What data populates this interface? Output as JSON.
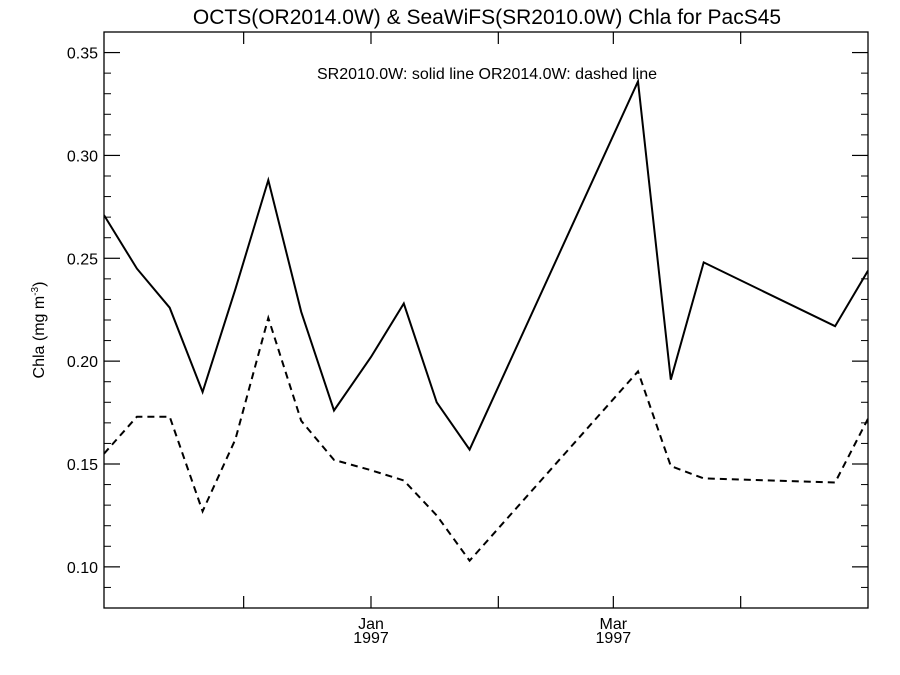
{
  "chart_data": {
    "type": "line",
    "title": "OCTS(OR2014.0W) & SeaWiFS(SR2010.0W)  Chla for PacS45",
    "annotation": "SR2010.0W: solid line   OR2014.0W: dashed line",
    "ylabel": {
      "main": "Chla (mg m",
      "sup": "-3",
      "close": ")"
    },
    "ylim": [
      0.08,
      0.36
    ],
    "yticks": [
      {
        "value": 0.1,
        "label": "0.10"
      },
      {
        "value": 0.15,
        "label": "0.15"
      },
      {
        "value": 0.2,
        "label": "0.20"
      },
      {
        "value": 0.25,
        "label": "0.25"
      },
      {
        "value": 0.3,
        "label": "0.30"
      },
      {
        "value": 0.35,
        "label": "0.35"
      }
    ],
    "y_minor_step": 0.01,
    "xlim": [
      "1996-10-28",
      "1997-05-02"
    ],
    "xticks": [
      {
        "date": "1996-12-01",
        "label": ""
      },
      {
        "date": "1997-01-01",
        "label": "Jan",
        "sublabel": "1997"
      },
      {
        "date": "1997-02-01",
        "label": ""
      },
      {
        "date": "1997-03-01",
        "label": "Mar",
        "sublabel": "1997"
      },
      {
        "date": "1997-04-01",
        "label": ""
      }
    ],
    "series": [
      {
        "name": "SR2010.0W",
        "style": "solid",
        "x": [
          "1996-10-28",
          "1996-11-05",
          "1996-11-13",
          "1996-11-21",
          "1996-11-29",
          "1996-12-07",
          "1996-12-15",
          "1996-12-23",
          "1997-01-01",
          "1997-01-09",
          "1997-01-17",
          "1997-01-25",
          "1997-03-07",
          "1997-03-15",
          "1997-03-23",
          "1997-04-24",
          "1997-05-02"
        ],
        "values": [
          0.271,
          0.245,
          0.226,
          0.185,
          0.235,
          0.288,
          0.224,
          0.176,
          0.202,
          0.228,
          0.18,
          0.157,
          0.336,
          0.191,
          0.248,
          0.217,
          0.244
        ]
      },
      {
        "name": "OR2014.0W",
        "style": "dashed",
        "x": [
          "1996-10-28",
          "1996-11-05",
          "1996-11-13",
          "1996-11-21",
          "1996-11-29",
          "1996-12-07",
          "1996-12-15",
          "1996-12-23",
          "1997-01-01",
          "1997-01-09",
          "1997-01-17",
          "1997-01-25",
          "1997-03-07",
          "1997-03-15",
          "1997-03-23",
          "1997-04-24",
          "1997-05-02"
        ],
        "values": [
          0.155,
          0.173,
          0.173,
          0.127,
          0.162,
          0.221,
          0.171,
          0.152,
          0.147,
          0.142,
          0.125,
          0.103,
          0.195,
          0.149,
          0.143,
          0.141,
          0.172
        ]
      }
    ],
    "grid": false,
    "colors": {
      "line": "#000000",
      "background": "#ffffff"
    }
  }
}
